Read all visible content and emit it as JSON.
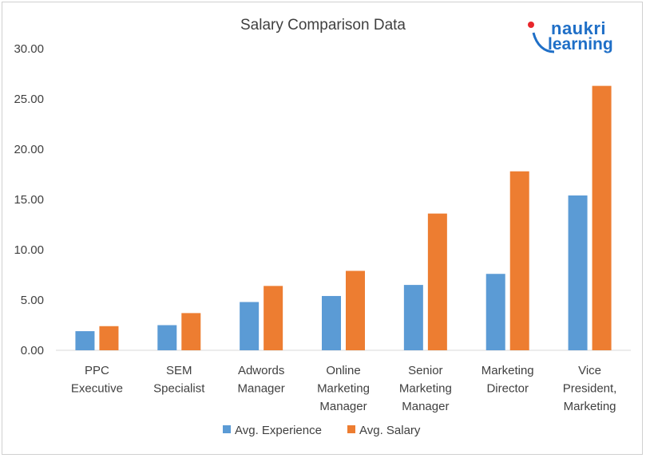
{
  "logo": {
    "line1": "naukri",
    "line2": "learning"
  },
  "chart_data": {
    "type": "bar",
    "title": "Salary Comparison Data",
    "categories": [
      [
        "PPC",
        "Executive"
      ],
      [
        "SEM",
        "Specialist"
      ],
      [
        "Adwords",
        "Manager"
      ],
      [
        "Online",
        "Marketing",
        "Manager"
      ],
      [
        "Senior",
        "Marketing",
        "Manager"
      ],
      [
        "Marketing",
        "Director"
      ],
      [
        "Vice",
        "President,",
        "Marketing"
      ]
    ],
    "series": [
      {
        "name": "Avg. Experience",
        "color": "#5b9bd5",
        "values": [
          1.9,
          2.5,
          4.8,
          5.4,
          6.5,
          7.6,
          15.4
        ]
      },
      {
        "name": "Avg. Salary",
        "color": "#ed7d31",
        "values": [
          2.4,
          3.7,
          6.4,
          7.9,
          13.6,
          17.8,
          26.3
        ]
      }
    ],
    "y_ticks": [
      "0.00",
      "5.00",
      "10.00",
      "15.00",
      "20.00",
      "25.00",
      "30.00"
    ],
    "ylim": [
      0,
      30
    ],
    "grid": false,
    "legend_position": "bottom"
  }
}
